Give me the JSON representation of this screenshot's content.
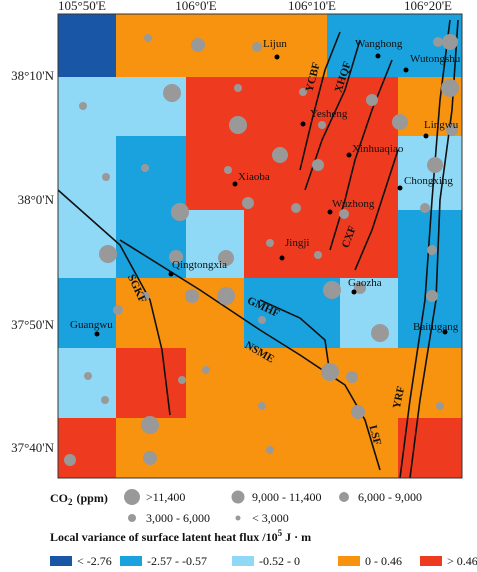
{
  "axes": {
    "top": [
      "105°50'E",
      "106°0'E",
      "106°10'E",
      "106°20'E"
    ],
    "left": [
      "38°10'N",
      "38°0'N",
      "37°50'N",
      "37°40'N"
    ]
  },
  "places": [
    "Lijun",
    "Wanghong",
    "Wutongshu",
    "Yesheng",
    "Lingwu",
    "Xinhuaqiao",
    "Xiaoba",
    "Chongxing",
    "Wuzhong",
    "Jingji",
    "Qingtongxia",
    "Gaozha",
    "Guangwu",
    "Baitugang"
  ],
  "faults": [
    "YCBF",
    "XHQF",
    "CXF",
    "SGKF",
    "GMHF",
    "NSME",
    "LSF",
    "YRF"
  ],
  "legend": {
    "co2_title": "CO",
    "co2_sub": "2",
    "co2_unit": "(ppm)",
    "co2_classes": [
      ">11,400",
      "9,000 - 11,400",
      "6,000 - 9,000",
      "3,000 - 6,000",
      "< 3,000"
    ],
    "flux_title": "Local variance of surface latent heat flux /10",
    "flux_sup": "5",
    "flux_unit": " J · m",
    "flux_classes": [
      "< -2.76",
      "-2.57 - -0.57",
      "-0.52 - 0",
      "0 - 0.46",
      "> 0.46"
    ]
  }
}
